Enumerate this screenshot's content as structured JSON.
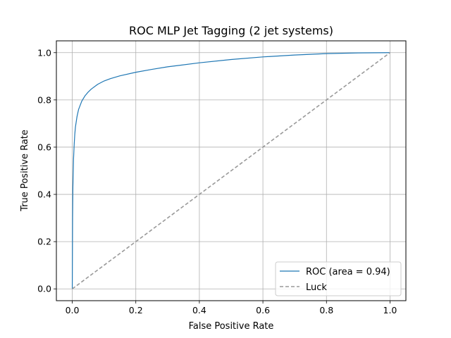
{
  "chart_data": {
    "type": "line",
    "title": "ROC MLP Jet Tagging (2 jet systems)",
    "xlabel": "False Positive Rate",
    "ylabel": "True Positive Rate",
    "xlim": [
      -0.05,
      1.05
    ],
    "ylim": [
      -0.05,
      1.05
    ],
    "grid": true,
    "legend_position": "lower-right",
    "x_ticks": [
      "0.0",
      "0.2",
      "0.4",
      "0.6",
      "0.8",
      "1.0"
    ],
    "y_ticks": [
      "0.0",
      "0.2",
      "0.4",
      "0.6",
      "0.8",
      "1.0"
    ],
    "series": [
      {
        "name": "ROC (area = 0.94)",
        "color": "#1f77b4",
        "style": "solid",
        "x": [
          0.0,
          0.001,
          0.002,
          0.004,
          0.006,
          0.008,
          0.01,
          0.015,
          0.02,
          0.03,
          0.04,
          0.05,
          0.06,
          0.08,
          0.1,
          0.12,
          0.15,
          0.2,
          0.25,
          0.3,
          0.4,
          0.5,
          0.6,
          0.7,
          0.8,
          0.9,
          1.0
        ],
        "y": [
          0.0,
          0.3,
          0.43,
          0.55,
          0.61,
          0.655,
          0.685,
          0.73,
          0.76,
          0.795,
          0.817,
          0.833,
          0.846,
          0.866,
          0.88,
          0.89,
          0.902,
          0.917,
          0.929,
          0.94,
          0.957,
          0.971,
          0.982,
          0.99,
          0.996,
          0.999,
          1.0
        ]
      },
      {
        "name": "Luck",
        "color": "#999999",
        "style": "dashed",
        "x": [
          0.0,
          1.0
        ],
        "y": [
          0.0,
          1.0
        ]
      }
    ]
  }
}
